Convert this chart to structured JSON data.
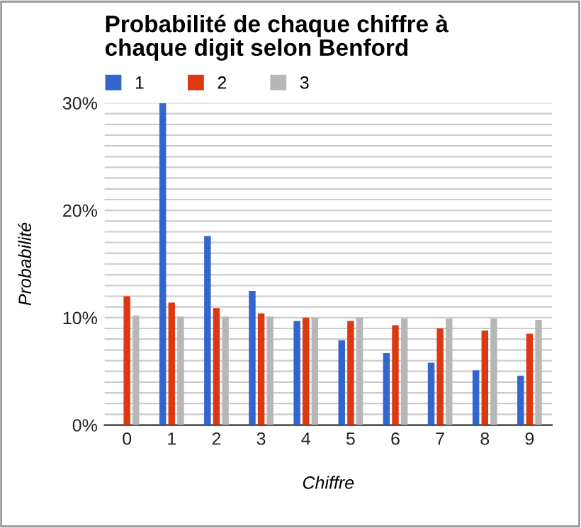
{
  "chart_data": {
    "type": "bar",
    "title": "Probabilité de chaque chiffre à\nchaque digit selon Benford",
    "xlabel": "Chiffre",
    "ylabel": "Probabilité",
    "categories": [
      "0",
      "1",
      "2",
      "3",
      "4",
      "5",
      "6",
      "7",
      "8",
      "9"
    ],
    "series": [
      {
        "name": "1",
        "color": "#3366cc",
        "values": [
          null,
          30.0,
          17.6,
          12.5,
          9.7,
          7.9,
          6.7,
          5.8,
          5.1,
          4.6
        ]
      },
      {
        "name": "2",
        "color": "#dc3912",
        "values": [
          12.0,
          11.4,
          10.9,
          10.4,
          10.0,
          9.7,
          9.3,
          9.0,
          8.8,
          8.5
        ]
      },
      {
        "name": "3",
        "color": "#b7b7b7",
        "values": [
          10.2,
          10.1,
          10.1,
          10.1,
          10.0,
          10.0,
          9.9,
          9.9,
          9.9,
          9.8
        ]
      }
    ],
    "ylim": [
      0,
      30
    ],
    "yticks": [
      {
        "value": 0,
        "label": "0%"
      },
      {
        "value": 1,
        "label": null
      },
      {
        "value": 2,
        "label": null
      },
      {
        "value": 3,
        "label": null
      },
      {
        "value": 4,
        "label": null
      },
      {
        "value": 5,
        "label": null
      },
      {
        "value": 6,
        "label": null
      },
      {
        "value": 7,
        "label": null
      },
      {
        "value": 8,
        "label": null
      },
      {
        "value": 9,
        "label": null
      },
      {
        "value": 10,
        "label": "10%"
      },
      {
        "value": 11,
        "label": null
      },
      {
        "value": 12,
        "label": null
      },
      {
        "value": 13,
        "label": null
      },
      {
        "value": 14,
        "label": null
      },
      {
        "value": 15,
        "label": null
      },
      {
        "value": 16,
        "label": null
      },
      {
        "value": 17,
        "label": null
      },
      {
        "value": 18,
        "label": null
      },
      {
        "value": 19,
        "label": null
      },
      {
        "value": 20,
        "label": "20%"
      },
      {
        "value": 21,
        "label": null
      },
      {
        "value": 22,
        "label": null
      },
      {
        "value": 23,
        "label": null
      },
      {
        "value": 24,
        "label": null
      },
      {
        "value": 25,
        "label": null
      },
      {
        "value": 26,
        "label": null
      },
      {
        "value": 27,
        "label": null
      },
      {
        "value": 28,
        "label": null
      },
      {
        "value": 29,
        "label": null
      },
      {
        "value": 30,
        "label": "30%"
      }
    ],
    "grid": "y",
    "legend": "top left"
  }
}
